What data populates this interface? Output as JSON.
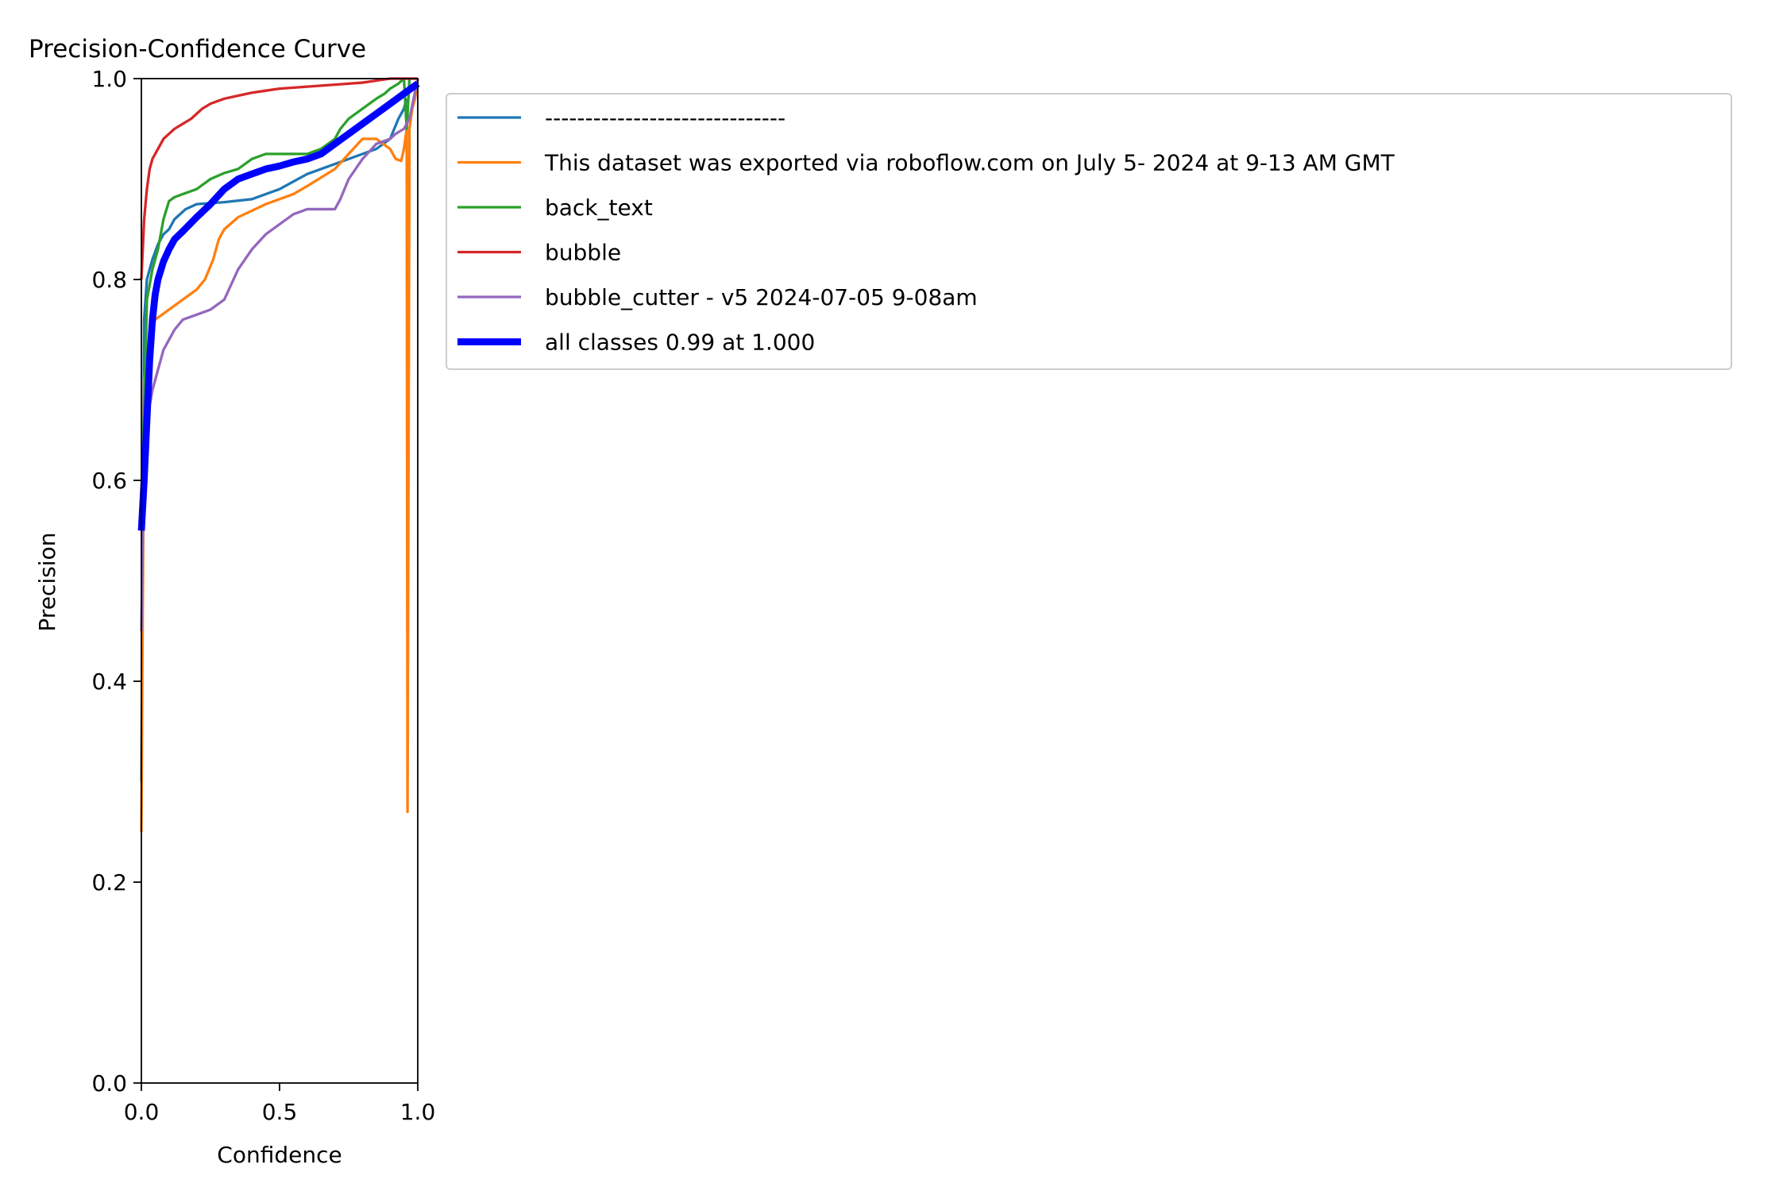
{
  "chart_data": {
    "type": "line",
    "title": "Precision-Confidence Curve",
    "xlabel": "Confidence",
    "ylabel": "Precision",
    "xlim": [
      0,
      1
    ],
    "ylim": [
      0,
      1
    ],
    "xticks": [
      "0.0",
      "0.5",
      "1.0"
    ],
    "yticks": [
      "0.0",
      "0.2",
      "0.4",
      "0.6",
      "0.8",
      "1.0"
    ],
    "grid": false,
    "legend_position": "outside-right",
    "series": [
      {
        "name": "------------------------------",
        "color": "#1f77b4",
        "width": 1.5,
        "x": [
          0.0,
          0.01,
          0.02,
          0.04,
          0.06,
          0.08,
          0.1,
          0.12,
          0.14,
          0.16,
          0.2,
          0.25,
          0.3,
          0.4,
          0.5,
          0.6,
          0.7,
          0.8,
          0.85,
          0.9,
          0.93,
          0.95,
          0.96
        ],
        "y": [
          0.3,
          0.76,
          0.8,
          0.82,
          0.835,
          0.845,
          0.85,
          0.86,
          0.865,
          0.87,
          0.875,
          0.876,
          0.877,
          0.88,
          0.89,
          0.905,
          0.915,
          0.925,
          0.93,
          0.94,
          0.96,
          0.97,
          0.98
        ]
      },
      {
        "name": "This dataset was exported via roboflow.com on July 5- 2024 at 9-13 AM GMT",
        "color": "#ff7f0e",
        "width": 1.5,
        "x": [
          0.0,
          0.01,
          0.03,
          0.05,
          0.1,
          0.15,
          0.2,
          0.23,
          0.26,
          0.28,
          0.3,
          0.35,
          0.45,
          0.55,
          0.6,
          0.7,
          0.75,
          0.8,
          0.85,
          0.9,
          0.92,
          0.94,
          0.95,
          0.96,
          0.963,
          0.97,
          0.98,
          0.99,
          1.0
        ],
        "y": [
          0.25,
          0.7,
          0.74,
          0.76,
          0.77,
          0.78,
          0.79,
          0.8,
          0.82,
          0.84,
          0.85,
          0.862,
          0.875,
          0.885,
          0.893,
          0.91,
          0.925,
          0.94,
          0.94,
          0.93,
          0.92,
          0.918,
          0.93,
          0.95,
          0.27,
          0.95,
          0.97,
          0.98,
          1.0
        ]
      },
      {
        "name": "back_text",
        "color": "#2ca02c",
        "width": 1.5,
        "x": [
          0.0,
          0.02,
          0.04,
          0.06,
          0.08,
          0.1,
          0.12,
          0.15,
          0.2,
          0.25,
          0.3,
          0.35,
          0.4,
          0.45,
          0.5,
          0.6,
          0.65,
          0.7,
          0.72,
          0.75,
          0.8,
          0.85,
          0.88,
          0.9,
          0.93,
          0.95,
          0.96,
          0.97
        ],
        "y": [
          0.55,
          0.78,
          0.81,
          0.83,
          0.86,
          0.878,
          0.882,
          0.885,
          0.89,
          0.9,
          0.906,
          0.91,
          0.92,
          0.925,
          0.925,
          0.925,
          0.93,
          0.94,
          0.95,
          0.96,
          0.97,
          0.98,
          0.985,
          0.99,
          0.995,
          1.0,
          0.95,
          1.0
        ]
      },
      {
        "name": "bubble",
        "color": "#d62728",
        "width": 1.5,
        "x": [
          0.0,
          0.005,
          0.01,
          0.02,
          0.03,
          0.04,
          0.06,
          0.08,
          0.1,
          0.12,
          0.15,
          0.18,
          0.2,
          0.22,
          0.25,
          0.3,
          0.35,
          0.4,
          0.45,
          0.5,
          0.6,
          0.7,
          0.8,
          0.85,
          0.9,
          0.95,
          1.0
        ],
        "y": [
          0.8,
          0.83,
          0.86,
          0.89,
          0.91,
          0.92,
          0.93,
          0.94,
          0.945,
          0.95,
          0.955,
          0.96,
          0.965,
          0.97,
          0.975,
          0.98,
          0.983,
          0.986,
          0.988,
          0.99,
          0.992,
          0.994,
          0.996,
          0.998,
          1.0,
          1.0,
          1.0
        ]
      },
      {
        "name": "bubble_cutter - v5 2024-07-05 9-08am",
        "color": "#9467bd",
        "width": 1.5,
        "x": [
          0.0,
          0.01,
          0.02,
          0.04,
          0.06,
          0.08,
          0.1,
          0.12,
          0.15,
          0.2,
          0.25,
          0.3,
          0.35,
          0.4,
          0.45,
          0.5,
          0.55,
          0.6,
          0.65,
          0.7,
          0.72,
          0.75,
          0.8,
          0.85,
          0.9,
          0.92,
          0.95,
          0.97,
          1.0
        ],
        "y": [
          0.45,
          0.62,
          0.66,
          0.69,
          0.71,
          0.73,
          0.74,
          0.75,
          0.76,
          0.765,
          0.77,
          0.78,
          0.81,
          0.83,
          0.845,
          0.855,
          0.865,
          0.87,
          0.87,
          0.87,
          0.88,
          0.9,
          0.92,
          0.935,
          0.94,
          0.945,
          0.95,
          0.96,
          1.0
        ]
      },
      {
        "name": "all classes 0.99 at 1.000",
        "color": "#0000ff",
        "width": 4,
        "x": [
          0.0,
          0.01,
          0.02,
          0.03,
          0.04,
          0.05,
          0.06,
          0.08,
          0.1,
          0.12,
          0.15,
          0.2,
          0.25,
          0.3,
          0.35,
          0.4,
          0.45,
          0.5,
          0.55,
          0.6,
          0.65,
          0.7,
          0.75,
          0.8,
          0.85,
          0.9,
          0.95,
          1.0
        ],
        "y": [
          0.55,
          0.6,
          0.66,
          0.72,
          0.76,
          0.785,
          0.8,
          0.818,
          0.83,
          0.84,
          0.848,
          0.862,
          0.875,
          0.89,
          0.9,
          0.905,
          0.91,
          0.913,
          0.917,
          0.92,
          0.925,
          0.935,
          0.945,
          0.955,
          0.965,
          0.975,
          0.985,
          0.995
        ]
      }
    ]
  }
}
